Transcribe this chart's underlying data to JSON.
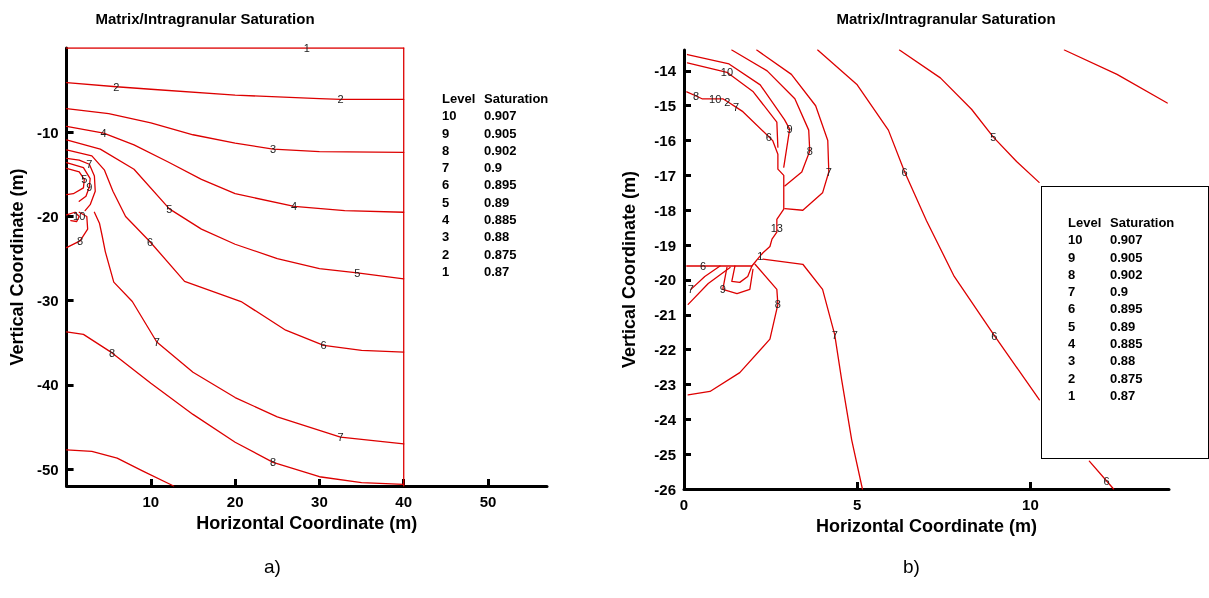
{
  "chart_data": [
    {
      "type": "line",
      "title": "Matrix/Intragranular Saturation",
      "xlabel": "Horizontal Coordinate (m)",
      "ylabel": "Vertical Coordinate (m)",
      "xlim": [
        0,
        57
      ],
      "xticks": [
        10,
        20,
        30,
        40,
        50
      ],
      "ylim": [
        -52,
        0
      ],
      "yticks": [
        -50,
        -40,
        -30,
        -20,
        -10
      ],
      "series": [
        {
          "color": "#dd0000",
          "x": [
            0,
            28.5,
            40
          ],
          "values": [
            0,
            0,
            0
          ]
        },
        {
          "color": "#dd0000",
          "x": [
            40,
            40
          ],
          "values": [
            0,
            -52
          ]
        },
        {
          "color": "#dd0000",
          "x": [
            0,
            5.9,
            10,
            20,
            30,
            32.5,
            40
          ],
          "values": [
            -4.1,
            -4.6,
            -4.9,
            -5.6,
            -6.0,
            -6.1,
            -6.1
          ]
        },
        {
          "color": "#dd0000",
          "x": [
            0,
            5,
            10,
            15,
            20,
            24.5,
            30,
            40
          ],
          "values": [
            -7.2,
            -7.8,
            -8.9,
            -10.3,
            -11.3,
            -12.0,
            -12.3,
            -12.4
          ]
        },
        {
          "color": "#dd0000",
          "x": [
            0,
            4.4,
            8,
            12,
            16,
            20,
            27,
            33,
            40
          ],
          "values": [
            -9.3,
            -10.1,
            -11.5,
            -13.5,
            -15.6,
            -17.3,
            -18.8,
            -19.3,
            -19.5
          ]
        },
        {
          "color": "#dd0000",
          "x": [
            0,
            4,
            8,
            12.2,
            16,
            20,
            25,
            30,
            34.5,
            40
          ],
          "values": [
            -10.9,
            -12,
            -14.4,
            -19.1,
            -21.5,
            -23.3,
            -25,
            -26.2,
            -26.7,
            -27.4
          ]
        },
        {
          "color": "#dd0000",
          "x": [
            0,
            3,
            4.5,
            5.5,
            7,
            9.9,
            14,
            20.7,
            26,
            30.5,
            35,
            40
          ],
          "values": [
            -12.1,
            -12.8,
            -14.5,
            -17,
            -20,
            -23.0,
            -27.7,
            -30.1,
            -33.5,
            -35.3,
            -35.9,
            -36.1
          ]
        },
        {
          "color": "#dd0000",
          "x": [
            3.3,
            3.9,
            4.2,
            4.6,
            5.6,
            7.8,
            10.7,
            15,
            20,
            25,
            32.5,
            40
          ],
          "values": [
            -19.5,
            -20.8,
            -22.2,
            -24.2,
            -27.8,
            -30.1,
            -34.9,
            -38.5,
            -41.5,
            -43.8,
            -46.2,
            -47.0
          ]
        },
        {
          "color": "#dd0000",
          "x": [
            0,
            1.5,
            2.7,
            3.3,
            3.4,
            2.8,
            2.2
          ],
          "values": [
            -13.1,
            -13.3,
            -13.8,
            -15.2,
            -17,
            -18.6,
            -19.3
          ]
        },
        {
          "color": "#dd0000",
          "x": [
            0,
            2,
            2.8,
            2.7,
            2.3,
            1.5
          ],
          "values": [
            -13.6,
            -14.2,
            -15.5,
            -16.5,
            -17.6,
            -18.2
          ]
        },
        {
          "color": "#dd0000",
          "x": [
            0,
            1.5,
            2.1,
            2.0,
            0.8,
            0
          ],
          "values": [
            -14.3,
            -14.7,
            -15.6,
            -16.6,
            -17.3,
            -17.4
          ]
        },
        {
          "color": "#dd0000",
          "x": [
            0,
            1,
            1.5,
            1.2,
            0.5
          ],
          "values": [
            -19.8,
            -19.5,
            -20.0,
            -20.6,
            -20.5
          ]
        },
        {
          "color": "#dd0000",
          "x": [
            0,
            1.6,
            2.5,
            2.4,
            1.5
          ],
          "values": [
            -23.7,
            -22.9,
            -21.5,
            -20,
            -19.5
          ]
        },
        {
          "color": "#dd0000",
          "x": [
            0,
            2,
            5.4,
            10,
            15,
            20,
            24.5,
            30,
            35,
            40
          ],
          "values": [
            -33.7,
            -34,
            -36.2,
            -39.8,
            -43.5,
            -46.8,
            -49.2,
            -50.9,
            -51.6,
            -51.8
          ]
        },
        {
          "color": "#dd0000",
          "x": [
            0,
            3,
            6,
            9,
            12.7
          ],
          "values": [
            -47.7,
            -47.9,
            -48.7,
            -50.2,
            -52
          ]
        }
      ],
      "annotations": [
        {
          "text": "1",
          "x": 28.5,
          "y": 0
        },
        {
          "text": "2",
          "x": 5.9,
          "y": -4.6
        },
        {
          "text": "2",
          "x": 32.5,
          "y": -6.1
        },
        {
          "text": "3",
          "x": 24.5,
          "y": -12.0
        },
        {
          "text": "4",
          "x": 4.4,
          "y": -10.1
        },
        {
          "text": "4",
          "x": 27,
          "y": -18.8
        },
        {
          "text": "5",
          "x": 12.2,
          "y": -19.1
        },
        {
          "text": "5",
          "x": 34.5,
          "y": -26.7
        },
        {
          "text": "6",
          "x": 9.9,
          "y": -23.0
        },
        {
          "text": "6",
          "x": 30.5,
          "y": -35.3
        },
        {
          "text": "7",
          "x": 10.7,
          "y": -34.9
        },
        {
          "text": "7",
          "x": 32.5,
          "y": -46.2
        },
        {
          "text": "7",
          "x": 2.7,
          "y": -13.8
        },
        {
          "text": "9",
          "x": 2.7,
          "y": -16.5
        },
        {
          "text": "5",
          "x": 2.1,
          "y": -15.6
        },
        {
          "text": "10",
          "x": 1.5,
          "y": -20.0
        },
        {
          "text": "8",
          "x": 1.6,
          "y": -22.9
        },
        {
          "text": "8",
          "x": 5.4,
          "y": -36.2
        },
        {
          "text": "8",
          "x": 24.5,
          "y": -49.2
        },
        "Level Saturation",
        "10 0.907",
        "9 0.905",
        "8 0.902",
        "7 0.9",
        "6 0.895",
        "5 0.89",
        "4 0.885",
        "3 0.88",
        "2 0.875",
        "1 0.87",
        "a)"
      ]
    },
    {
      "type": "line",
      "title": "Matrix/Intragranular Saturation",
      "xlabel": "Horizontal Coordinate (m)",
      "ylabel": "Vertical Coordinate (m)",
      "xlim": [
        0,
        14
      ],
      "xticks": [
        0,
        5,
        10
      ],
      "ylim": [
        -26,
        -13.4
      ],
      "yticks": [
        -26,
        -25,
        -24,
        -23,
        -22,
        -21,
        -20,
        -19,
        -18,
        -17,
        -16,
        -15,
        -14
      ],
      "series": [
        {
          "color": "#dd0000",
          "x": [
            0.1,
            1.24,
            2.0,
            2.68,
            2.71
          ],
          "values": [
            -13.77,
            -14.04,
            -14.6,
            -15.47,
            -16.19
          ]
        },
        {
          "color": "#dd0000",
          "x": [
            0.1,
            1.3,
            2.2,
            2.9,
            3.05,
            2.88
          ],
          "values": [
            -13.53,
            -13.8,
            -14.4,
            -15.4,
            -15.67,
            -16.76
          ]
        },
        {
          "color": "#dd0000",
          "x": [
            1.38,
            2.4,
            3.2,
            3.6,
            3.63,
            3.4,
            2.91
          ],
          "values": [
            -13.4,
            -14.0,
            -14.8,
            -15.7,
            -16.3,
            -16.9,
            -17.3
          ]
        },
        {
          "color": "#dd0000",
          "x": [
            2.1,
            3.1,
            3.8,
            4.15,
            4.18,
            4.0,
            3.43,
            2.91
          ],
          "values": [
            -13.4,
            -14.1,
            -15.0,
            -16.0,
            -16.9,
            -17.5,
            -18.0,
            -17.95
          ]
        },
        {
          "color": "#dd0000",
          "x": [
            3.86,
            5.0,
            5.9,
            6.37,
            7.0,
            7.8,
            8.96,
            10.26,
            11.0,
            11.7,
            12.2,
            12.4
          ],
          "values": [
            -13.4,
            -14.4,
            -15.7,
            -16.9,
            -18.3,
            -19.9,
            -21.6,
            -23.44,
            null,
            -25.2,
            -25.77,
            -26.0
          ]
        },
        {
          "color": "#dd0000",
          "x": [
            6.22,
            7.4,
            8.3,
            8.93,
            9.6,
            10.25
          ],
          "values": [
            -13.4,
            -14.2,
            -15.1,
            -15.9,
            -16.6,
            -17.2
          ]
        },
        {
          "color": "#dd0000",
          "x": [
            10.98,
            12.5,
            13.95
          ],
          "values": [
            -13.4,
            -14.1,
            -14.92
          ]
        },
        {
          "color": "#dd0000",
          "x": [
            2.28,
            3.43,
            4.0,
            4.35,
            4.55,
            4.84,
            5.15
          ],
          "values": [
            -19.4,
            -19.55,
            -20.27,
            -21.57,
            -22.86,
            -24.59,
            -26.0
          ]
        },
        {
          "color": "#dd0000",
          "x": [
            2.05,
            2.68,
            2.71,
            2.48,
            1.61,
            0.75,
            0.12
          ],
          "values": [
            -19.55,
            -20.27,
            -20.7,
            -21.7,
            -22.66,
            -23.2,
            -23.3
          ]
        },
        {
          "color": "#dd0000",
          "x": [
            1.24,
            1.12,
            1.53,
            1.9,
            1.99
          ],
          "values": [
            -19.64,
            -20.27,
            -20.39,
            -20.27,
            -19.7
          ]
        },
        {
          "color": "#dd0000",
          "x": [
            1.47,
            1.38,
            1.61,
            1.84,
            1.96
          ],
          "values": [
            -19.6,
            -20.04,
            -20.07,
            -19.9,
            -19.6
          ]
        },
        {
          "color": "#dd0000",
          "x": [
            0.2,
            0.6,
            1.04
          ],
          "values": [
            -20.27,
            -19.9,
            -19.6
          ]
        },
        {
          "color": "#dd0000",
          "x": [
            0.12,
            0.7,
            1.33
          ],
          "values": [
            -20.7,
            -20.1,
            -19.64
          ]
        },
        {
          "color": "#dd0000",
          "x": [
            0.08,
            0.35,
            0.52,
            0.9,
            1.12,
            1.25,
            1.5,
            1.7,
            2.45,
            2.56,
            2.71,
            2.71,
            2.88,
            2.88,
            2.68,
            2.68,
            2.68,
            2.54,
            2.48,
            2.28,
            2.2,
            1.96,
            0.55,
            0.08
          ],
          "values": [
            -14.6,
            -14.72,
            -14.8,
            -14.8,
            -14.8,
            -14.88,
            -15.04,
            -15.17,
            -15.89,
            -16.0,
            -16.39,
            -16.82,
            -17.0,
            -17.97,
            -18.26,
            -18.5,
            -18.63,
            -18.83,
            -19.04,
            -19.22,
            -19.31,
            -19.6,
            -19.6,
            -19.6
          ]
        }
      ],
      "annotations": [
        {
          "text": "10",
          "x": 1.24,
          "y": -14.04
        },
        {
          "text": "9",
          "x": 3.05,
          "y": -15.67
        },
        {
          "text": "8",
          "x": 3.63,
          "y": -16.3
        },
        {
          "text": "7",
          "x": 4.18,
          "y": -16.9
        },
        {
          "text": "6",
          "x": 6.37,
          "y": -16.9
        },
        {
          "text": "6",
          "x": 8.96,
          "y": -21.6
        },
        {
          "text": "6",
          "x": 12.2,
          "y": -25.77
        },
        {
          "text": "5",
          "x": 8.93,
          "y": -15.9
        },
        {
          "text": "7",
          "x": 4.35,
          "y": -21.57
        },
        {
          "text": "8",
          "x": 2.71,
          "y": -20.7
        },
        {
          "text": "9",
          "x": 1.12,
          "y": -20.27
        },
        {
          "text": "7",
          "x": 0.2,
          "y": -20.27
        },
        {
          "text": "8",
          "x": 0.35,
          "y": -14.72
        },
        {
          "text": "10",
          "x": 0.9,
          "y": -14.8
        },
        {
          "text": "2",
          "x": 1.25,
          "y": -14.88
        },
        {
          "text": "7",
          "x": 1.5,
          "y": -15.04
        },
        {
          "text": "6",
          "x": 2.45,
          "y": -15.89
        },
        {
          "text": "13",
          "x": 2.68,
          "y": -18.5
        },
        {
          "text": "1",
          "x": 2.2,
          "y": -19.31
        },
        {
          "text": "6",
          "x": 0.55,
          "y": -19.6
        },
        "Level Saturation",
        "10 0.907",
        "9 0.905",
        "8 0.902",
        "7 0.9",
        "6 0.895",
        "5 0.89",
        "4 0.885",
        "3 0.88",
        "2 0.875",
        "1 0.87",
        "b)"
      ]
    }
  ]
}
